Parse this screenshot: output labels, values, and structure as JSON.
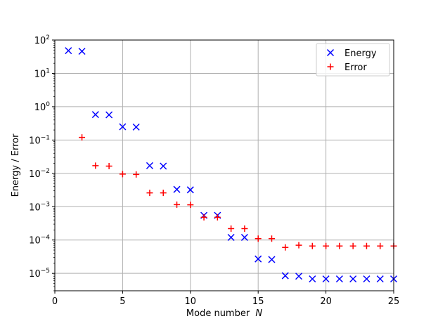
{
  "chart_data": {
    "type": "scatter",
    "title": "",
    "xlabel": "Mode number",
    "xlabel_symbol": "N",
    "ylabel": "Energy / Error",
    "xlim": [
      0,
      25
    ],
    "ylim": [
      3e-06,
      100
    ],
    "yscale": "log",
    "grid": true,
    "legend_position": "top-right",
    "xticks": [
      0,
      5,
      10,
      15,
      20,
      25
    ],
    "yticks": [
      {
        "value": 100,
        "base": "10",
        "exp": "2"
      },
      {
        "value": 10,
        "base": "10",
        "exp": "1"
      },
      {
        "value": 1,
        "base": "10",
        "exp": "0"
      },
      {
        "value": 0.1,
        "base": "10",
        "exp": "−1"
      },
      {
        "value": 0.01,
        "base": "10",
        "exp": "−2"
      },
      {
        "value": 0.001,
        "base": "10",
        "exp": "−3"
      },
      {
        "value": 0.0001,
        "base": "10",
        "exp": "−4"
      },
      {
        "value": 1e-05,
        "base": "10",
        "exp": "−5"
      }
    ],
    "series": [
      {
        "name": "Energy",
        "marker": "x",
        "color": "#0000ff",
        "x": [
          1,
          2,
          3,
          4,
          5,
          6,
          7,
          8,
          9,
          10,
          11,
          12,
          13,
          14,
          15,
          16,
          17,
          18,
          19,
          20,
          21,
          22,
          23,
          24,
          25
        ],
        "y": [
          48,
          46,
          0.58,
          0.57,
          0.25,
          0.245,
          0.017,
          0.0165,
          0.0033,
          0.0032,
          0.00055,
          0.00055,
          0.00012,
          0.00012,
          2.7e-05,
          2.6e-05,
          8.5e-06,
          8.2e-06,
          6.8e-06,
          6.8e-06,
          6.8e-06,
          6.8e-06,
          6.8e-06,
          6.8e-06,
          6.8e-06
        ]
      },
      {
        "name": "Error",
        "marker": "+",
        "color": "#ff0000",
        "x": [
          2,
          3,
          4,
          5,
          6,
          7,
          8,
          9,
          10,
          11,
          12,
          13,
          14,
          15,
          16,
          17,
          18,
          19,
          20,
          21,
          22,
          23,
          24,
          25
        ],
        "y": [
          0.12,
          0.017,
          0.0165,
          0.0095,
          0.0093,
          0.0026,
          0.0026,
          0.00115,
          0.00114,
          0.00048,
          0.00048,
          0.00022,
          0.00022,
          0.00011,
          0.00011,
          6e-05,
          7e-05,
          6.6e-05,
          6.6e-05,
          6.6e-05,
          6.6e-05,
          6.6e-05,
          6.6e-05,
          6.6e-05
        ]
      }
    ]
  }
}
